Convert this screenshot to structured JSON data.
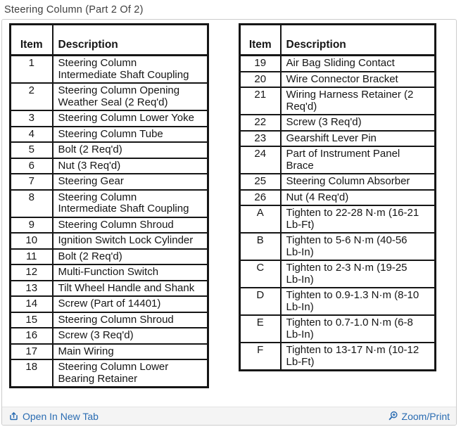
{
  "page_title": "Steering Column (Part 2 Of 2)",
  "left_table": {
    "headers": {
      "item": "Item",
      "description": "Description"
    },
    "rows": [
      {
        "item": "1",
        "description": "Steering Column Intermediate Shaft Coupling"
      },
      {
        "item": "2",
        "description": "Steering Column Opening Weather Seal (2 Req'd)"
      },
      {
        "item": "3",
        "description": "Steering Column Lower Yoke"
      },
      {
        "item": "4",
        "description": "Steering Column Tube"
      },
      {
        "item": "5",
        "description": "Bolt (2 Req'd)"
      },
      {
        "item": "6",
        "description": "Nut (3 Req'd)"
      },
      {
        "item": "7",
        "description": "Steering Gear"
      },
      {
        "item": "8",
        "description": "Steering Column Intermediate Shaft Coupling"
      },
      {
        "item": "9",
        "description": "Steering Column Shroud"
      },
      {
        "item": "10",
        "description": "Ignition Switch Lock Cylinder"
      },
      {
        "item": "11",
        "description": "Bolt (2 Req'd)"
      },
      {
        "item": "12",
        "description": "Multi-Function Switch"
      },
      {
        "item": "13",
        "description": "Tilt Wheel Handle and Shank"
      },
      {
        "item": "14",
        "description": "Screw (Part of 14401)"
      },
      {
        "item": "15",
        "description": "Steering Column Shroud"
      },
      {
        "item": "16",
        "description": "Screw (3 Req'd)"
      },
      {
        "item": "17",
        "description": "Main Wiring"
      },
      {
        "item": "18",
        "description": "Steering Column Lower Bearing Retainer"
      }
    ]
  },
  "right_table": {
    "headers": {
      "item": "Item",
      "description": "Description"
    },
    "rows": [
      {
        "item": "19",
        "description": "Air Bag Sliding Contact"
      },
      {
        "item": "20",
        "description": "Wire Connector Bracket"
      },
      {
        "item": "21",
        "description": "Wiring Harness Retainer (2 Req'd)"
      },
      {
        "item": "22",
        "description": "Screw (3 Req'd)"
      },
      {
        "item": "23",
        "description": "Gearshift Lever Pin"
      },
      {
        "item": "24",
        "description": "Part of Instrument Panel Brace"
      },
      {
        "item": "25",
        "description": "Steering Column Absorber"
      },
      {
        "item": "26",
        "description": "Nut (4 Req'd)"
      },
      {
        "item": "A",
        "description": "Tighten to 22-28 N·m (16-21 Lb-Ft)"
      },
      {
        "item": "B",
        "description": "Tighten to 5-6 N·m (40-56 Lb-In)"
      },
      {
        "item": "C",
        "description": "Tighten to 2-3 N·m (19-25 Lb-In)"
      },
      {
        "item": "D",
        "description": "Tighten to 0.9-1.3 N·m (8-10 Lb-In)"
      },
      {
        "item": "E",
        "description": "Tighten to 0.7-1.0 N·m (6-8 Lb-In)"
      },
      {
        "item": "F",
        "description": "Tighten to 13-17 N·m (10-12 Lb-Ft)"
      }
    ]
  },
  "footer": {
    "open_in_new_tab_label": "Open In New Tab",
    "zoom_print_label": "Zoom/Print"
  },
  "colors": {
    "link_blue": "#2a6cb2",
    "table_ink": "#161616",
    "footer_bg": "#f4f4f4",
    "panel_border": "#cccccc"
  }
}
